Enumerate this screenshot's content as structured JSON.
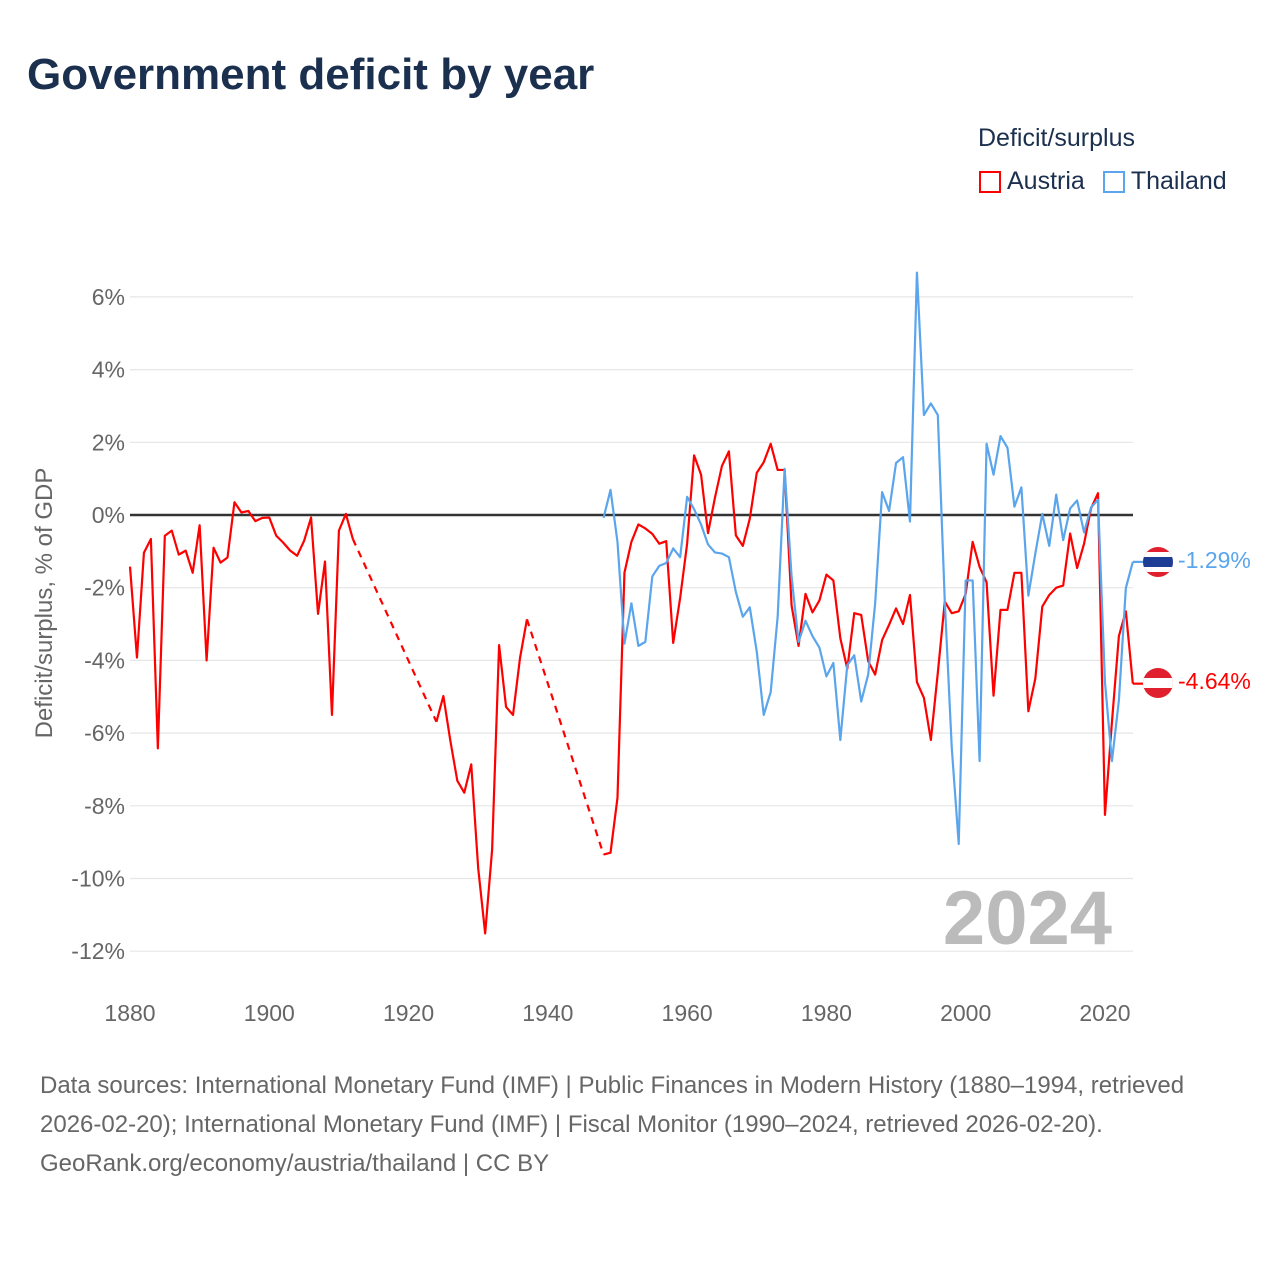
{
  "header": {
    "title": "Government deficit by year"
  },
  "legend": {
    "title": "Deficit/surplus",
    "items": [
      {
        "label": "Austria",
        "color": "#ff0000"
      },
      {
        "label": "Thailand",
        "color": "#5aa5ec"
      }
    ]
  },
  "watermark_year": "2024",
  "footer": {
    "sources": "Data sources: International Monetary Fund (IMF) | Public Finances in Modern History (1880–1994, retrieved 2026-02-20); International Monetary Fund (IMF) | Fiscal Monitor (1990–2024, retrieved 2026-02-20).",
    "credit": "GeoRank.org/economy/austria/thailand | CC BY"
  },
  "end_labels": {
    "thailand": "-1.29%",
    "austria": "-4.64%"
  },
  "chart_data": {
    "type": "line",
    "title": "Government deficit by year",
    "xlabel": "",
    "ylabel": "Deficit/surplus, % of GDP",
    "xlim": [
      1880,
      2024
    ],
    "ylim": [
      -13,
      7
    ],
    "x_ticks": [
      1880,
      1900,
      1920,
      1940,
      1960,
      1980,
      2000,
      2020
    ],
    "x_tick_labels": [
      "1880",
      "1900",
      "1920",
      "1940",
      "1960",
      "1980",
      "2000",
      "2020"
    ],
    "y_ticks": [
      6,
      4,
      2,
      0,
      -2,
      -4,
      -6,
      -8,
      -10,
      -12
    ],
    "y_tick_labels": [
      "6%",
      "4%",
      "2%",
      "0%",
      "-2%",
      "-4%",
      "-6%",
      "-8%",
      "-10%",
      "-12%"
    ],
    "grid": true,
    "legend_position": "top-right",
    "series": [
      {
        "name": "Austria",
        "color": "#ff0000",
        "points": [
          [
            1880,
            -1.42
          ],
          [
            1881,
            -3.92
          ],
          [
            1882,
            -1.04
          ],
          [
            1883,
            -0.66
          ],
          [
            1884,
            -6.42
          ],
          [
            1885,
            -0.57
          ],
          [
            1886,
            -0.43
          ],
          [
            1887,
            -1.09
          ],
          [
            1888,
            -0.98
          ],
          [
            1889,
            -1.59
          ],
          [
            1890,
            -0.28
          ],
          [
            1891,
            -4.0
          ],
          [
            1892,
            -0.9
          ],
          [
            1893,
            -1.31
          ],
          [
            1894,
            -1.17
          ],
          [
            1895,
            0.35
          ],
          [
            1896,
            0.07
          ],
          [
            1897,
            0.11
          ],
          [
            1898,
            -0.17
          ],
          [
            1899,
            -0.08
          ],
          [
            1900,
            -0.07
          ],
          [
            1901,
            -0.57
          ],
          [
            1902,
            -0.76
          ],
          [
            1903,
            -0.98
          ],
          [
            1904,
            -1.12
          ],
          [
            1905,
            -0.71
          ],
          [
            1906,
            -0.07
          ],
          [
            1907,
            -2.72
          ],
          [
            1908,
            -1.28
          ],
          [
            1909,
            -5.5
          ],
          [
            1910,
            -0.43
          ],
          [
            1911,
            0.03
          ],
          [
            1912,
            -0.66
          ],
          [
            1924,
            -5.69
          ],
          [
            1925,
            -4.98
          ],
          [
            1926,
            -6.21
          ],
          [
            1927,
            -7.31
          ],
          [
            1928,
            -7.64
          ],
          [
            1929,
            -6.86
          ],
          [
            1930,
            -9.72
          ],
          [
            1931,
            -11.51
          ],
          [
            1932,
            -9.2
          ],
          [
            1933,
            -3.58
          ],
          [
            1934,
            -5.28
          ],
          [
            1935,
            -5.5
          ],
          [
            1936,
            -3.94
          ],
          [
            1937,
            -2.87
          ],
          [
            1948,
            -9.34
          ],
          [
            1949,
            -9.29
          ],
          [
            1950,
            -7.78
          ],
          [
            1951,
            -1.59
          ],
          [
            1952,
            -0.74
          ],
          [
            1953,
            -0.26
          ],
          [
            1954,
            -0.37
          ],
          [
            1955,
            -0.52
          ],
          [
            1956,
            -0.79
          ],
          [
            1957,
            -0.72
          ],
          [
            1958,
            -3.52
          ],
          [
            1959,
            -2.28
          ],
          [
            1960,
            -0.79
          ],
          [
            1961,
            1.64
          ],
          [
            1962,
            1.11
          ],
          [
            1963,
            -0.5
          ],
          [
            1964,
            0.48
          ],
          [
            1965,
            1.35
          ],
          [
            1966,
            1.75
          ],
          [
            1967,
            -0.56
          ],
          [
            1968,
            -0.85
          ],
          [
            1969,
            -0.1
          ],
          [
            1970,
            1.16
          ],
          [
            1971,
            1.45
          ],
          [
            1972,
            1.96
          ],
          [
            1973,
            1.24
          ],
          [
            1974,
            1.24
          ],
          [
            1975,
            -2.49
          ],
          [
            1976,
            -3.6
          ],
          [
            1977,
            -2.17
          ],
          [
            1978,
            -2.68
          ],
          [
            1979,
            -2.35
          ],
          [
            1980,
            -1.64
          ],
          [
            1981,
            -1.8
          ],
          [
            1982,
            -3.39
          ],
          [
            1983,
            -4.23
          ],
          [
            1984,
            -2.7
          ],
          [
            1985,
            -2.75
          ],
          [
            1986,
            -4.02
          ],
          [
            1987,
            -4.39
          ],
          [
            1988,
            -3.44
          ],
          [
            1989,
            -3.02
          ],
          [
            1990,
            -2.57
          ],
          [
            1991,
            -3.0
          ],
          [
            1992,
            -2.2
          ],
          [
            1993,
            -4.6
          ],
          [
            1994,
            -5.03
          ],
          [
            1995,
            -6.19
          ],
          [
            1996,
            -4.34
          ],
          [
            1997,
            -2.38
          ],
          [
            1998,
            -2.7
          ],
          [
            1999,
            -2.65
          ],
          [
            2000,
            -2.17
          ],
          [
            2001,
            -0.74
          ],
          [
            2002,
            -1.43
          ],
          [
            2003,
            -1.85
          ],
          [
            2004,
            -4.97
          ],
          [
            2005,
            -2.61
          ],
          [
            2006,
            -2.61
          ],
          [
            2007,
            -1.59
          ],
          [
            2008,
            -1.59
          ],
          [
            2009,
            -5.4
          ],
          [
            2010,
            -4.5
          ],
          [
            2011,
            -2.52
          ],
          [
            2012,
            -2.2
          ],
          [
            2013,
            -2.0
          ],
          [
            2014,
            -1.94
          ],
          [
            2015,
            -0.51
          ],
          [
            2016,
            -1.46
          ],
          [
            2017,
            -0.79
          ],
          [
            2018,
            0.18
          ],
          [
            2019,
            0.6
          ],
          [
            2020,
            -8.25
          ],
          [
            2021,
            -5.7
          ],
          [
            2022,
            -3.33
          ],
          [
            2023,
            -2.65
          ],
          [
            2024,
            -4.64
          ]
        ]
      },
      {
        "name": "Thailand",
        "color": "#5aa5ec",
        "points": [
          [
            1948,
            -0.08
          ],
          [
            1949,
            0.69
          ],
          [
            1950,
            -0.74
          ],
          [
            1951,
            -3.54
          ],
          [
            1952,
            -2.43
          ],
          [
            1953,
            -3.6
          ],
          [
            1954,
            -3.49
          ],
          [
            1955,
            -1.69
          ],
          [
            1956,
            -1.4
          ],
          [
            1957,
            -1.32
          ],
          [
            1958,
            -0.92
          ],
          [
            1959,
            -1.16
          ],
          [
            1960,
            0.5
          ],
          [
            1961,
            0.16
          ],
          [
            1962,
            -0.26
          ],
          [
            1963,
            -0.81
          ],
          [
            1964,
            -1.03
          ],
          [
            1965,
            -1.06
          ],
          [
            1966,
            -1.16
          ],
          [
            1967,
            -2.12
          ],
          [
            1968,
            -2.8
          ],
          [
            1969,
            -2.54
          ],
          [
            1970,
            -3.76
          ],
          [
            1971,
            -5.5
          ],
          [
            1972,
            -4.87
          ],
          [
            1973,
            -2.8
          ],
          [
            1974,
            1.27
          ],
          [
            1975,
            -1.69
          ],
          [
            1976,
            -3.49
          ],
          [
            1977,
            -2.91
          ],
          [
            1978,
            -3.33
          ],
          [
            1979,
            -3.65
          ],
          [
            1980,
            -4.44
          ],
          [
            1981,
            -4.07
          ],
          [
            1982,
            -6.19
          ],
          [
            1983,
            -4.13
          ],
          [
            1984,
            -3.86
          ],
          [
            1985,
            -5.13
          ],
          [
            1986,
            -4.39
          ],
          [
            1987,
            -2.43
          ],
          [
            1988,
            0.63
          ],
          [
            1989,
            0.11
          ],
          [
            1990,
            1.43
          ],
          [
            1991,
            1.59
          ],
          [
            1992,
            -0.18
          ],
          [
            1993,
            6.67
          ],
          [
            1994,
            2.75
          ],
          [
            1995,
            3.07
          ],
          [
            1996,
            2.75
          ],
          [
            1997,
            -2.38
          ],
          [
            1998,
            -6.4
          ],
          [
            1999,
            -9.05
          ],
          [
            2000,
            -1.8
          ],
          [
            2001,
            -1.8
          ],
          [
            2002,
            -6.77
          ],
          [
            2003,
            1.96
          ],
          [
            2004,
            1.11
          ],
          [
            2005,
            2.17
          ],
          [
            2006,
            1.85
          ],
          [
            2007,
            0.23
          ],
          [
            2008,
            0.76
          ],
          [
            2009,
            -2.22
          ],
          [
            2010,
            -1.06
          ],
          [
            2011,
            0.03
          ],
          [
            2012,
            -0.85
          ],
          [
            2013,
            0.56
          ],
          [
            2014,
            -0.69
          ],
          [
            2015,
            0.18
          ],
          [
            2016,
            0.4
          ],
          [
            2017,
            -0.48
          ],
          [
            2018,
            0.21
          ],
          [
            2019,
            0.42
          ],
          [
            2020,
            -4.6
          ],
          [
            2021,
            -6.77
          ],
          [
            2022,
            -5.1
          ],
          [
            2023,
            -2.01
          ],
          [
            2024,
            -1.29
          ]
        ]
      }
    ]
  }
}
